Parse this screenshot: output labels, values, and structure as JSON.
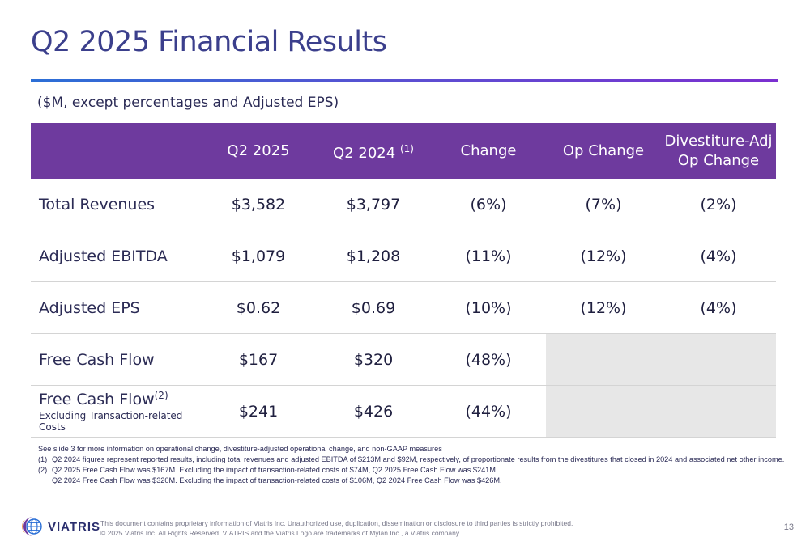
{
  "title": "Q2 2025 Financial Results",
  "subtitle": "($M, except percentages and Adjusted EPS)",
  "table": {
    "headers": [
      "",
      "Q2 2025",
      "Q2 2024",
      "Change",
      "Op Change",
      "Divestiture-Adj Op Change"
    ],
    "header_q2_2024_footnote": "(1)",
    "header_divest_line1": "Divestiture-Adj",
    "header_divest_line2": "Op Change",
    "rows": [
      {
        "label": "Total Revenues",
        "q2_2025": "$3,582",
        "q2_2024": "$3,797",
        "change": "(6%)",
        "op_change": "(7%)",
        "divest_adj": "(2%)"
      },
      {
        "label": "Adjusted EBITDA",
        "q2_2025": "$1,079",
        "q2_2024": "$1,208",
        "change": "(11%)",
        "op_change": "(12%)",
        "divest_adj": "(4%)"
      },
      {
        "label": "Adjusted EPS",
        "q2_2025": "$0.62",
        "q2_2024": "$0.69",
        "change": "(10%)",
        "op_change": "(12%)",
        "divest_adj": "(4%)"
      },
      {
        "label": "Free Cash Flow",
        "q2_2025": "$167",
        "q2_2024": "$320",
        "change": "(48%)",
        "op_change": "",
        "divest_adj": ""
      },
      {
        "label": "Free Cash Flow",
        "label_footnote": "(2)",
        "label_sub": "Excluding Transaction-related Costs",
        "q2_2025": "$241",
        "q2_2024": "$426",
        "change": "(44%)",
        "op_change": "",
        "divest_adj": ""
      }
    ]
  },
  "notes": {
    "intro": "See slide 3 for more information on operational change, divestiture-adjusted operational change, and non-GAAP measures",
    "items": [
      {
        "num": "(1)",
        "text": "Q2 2024 figures represent reported results, including total revenues and adjusted EBITDA of $213M and $92M, respectively, of proportionate results from the divestitures that closed in 2024 and associated net other income."
      },
      {
        "num": "(2)",
        "text": "Q2 2025 Free Cash Flow was $167M. Excluding the impact of transaction-related costs of $74M, Q2 2025 Free Cash Flow was $241M.",
        "text2": "Q2 2024 Free Cash Flow was $320M. Excluding the impact of transaction-related costs of $106M, Q2 2024 Free Cash Flow was $426M."
      }
    ]
  },
  "footer": {
    "logo_text": "VIATRIS",
    "disclaimer_line1": "This document contains proprietary information of Viatris Inc. Unauthorized use, duplication, dissemination or disclosure to third parties is strictly prohibited.",
    "disclaimer_line2": "© 2025 Viatris Inc. All Rights Reserved. VIATRIS and the Viatris Logo are trademarks of Mylan Inc., a Viatris company.",
    "page_number": "13"
  },
  "colors": {
    "title": "#3b3f8c",
    "header_bg": "#6e3a9e",
    "rule_start": "#2b6fd6",
    "rule_end": "#7b2fd0",
    "empty_cell": "#e7e7e7"
  }
}
